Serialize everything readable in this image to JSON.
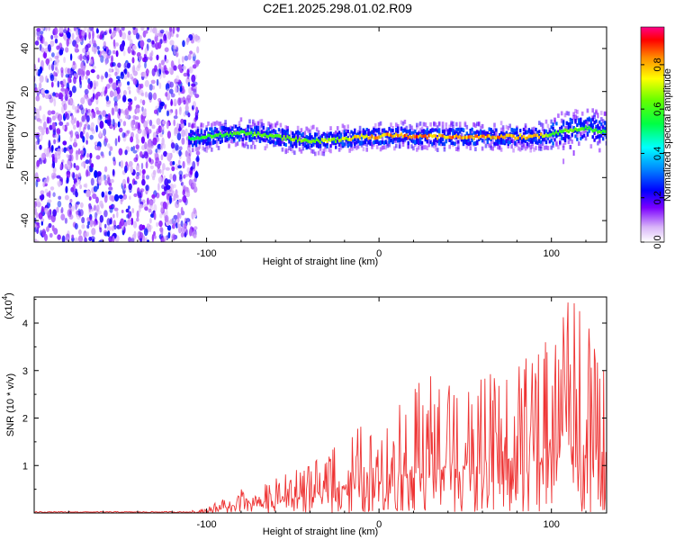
{
  "title": "C2E1.2025.298.01.02.R09",
  "chart_data": [
    {
      "type": "heatmap",
      "name": "spectrogram",
      "xlabel": "Height of straight line (km)",
      "ylabel": "Frequency (Hz)",
      "xlim": [
        -200,
        132
      ],
      "ylim": [
        -50,
        50
      ],
      "xticks": [
        -100,
        0,
        100
      ],
      "yticks": [
        -40,
        -20,
        0,
        20,
        40
      ],
      "colorbar": {
        "label": "Normalized spectral amplitude",
        "range": [
          0,
          0.97
        ],
        "ticks": [
          0.0,
          0.2,
          0.4,
          0.6,
          0.8
        ]
      },
      "ridge": {
        "description": "dominant frequency track vs height",
        "x": [
          -110,
          -100,
          -90,
          -80,
          -70,
          -60,
          -50,
          -40,
          -30,
          -20,
          -10,
          0,
          10,
          20,
          30,
          40,
          50,
          60,
          70,
          80,
          90,
          100,
          110,
          120,
          130
        ],
        "y": [
          -2,
          -1,
          0,
          1,
          0,
          -1,
          -2,
          -3,
          -3,
          -2,
          -1,
          -1,
          0,
          -1,
          -1,
          -1,
          -1,
          -1,
          -1,
          -1,
          -1,
          0,
          2,
          3,
          1
        ],
        "peak_amplitude": [
          0.35,
          0.45,
          0.5,
          0.5,
          0.55,
          0.55,
          0.6,
          0.6,
          0.65,
          0.7,
          0.8,
          0.85,
          0.9,
          0.95,
          0.92,
          0.9,
          0.88,
          0.9,
          0.9,
          0.88,
          0.92,
          0.5,
          0.55,
          0.5,
          0.45
        ]
      },
      "noise_region_x": [
        -200,
        -105
      ]
    },
    {
      "type": "line",
      "name": "snr",
      "xlabel": "Height of straight line (km)",
      "ylabel": "SNR (10 * v/v)",
      "y_scale_label": "(x10",
      "y_scale_exp": "4",
      "xlim": [
        -200,
        132
      ],
      "ylim": [
        0,
        4.55
      ],
      "xticks": [
        -100,
        0,
        100
      ],
      "yticks": [
        1,
        2,
        3,
        4
      ],
      "color": "#ee3333",
      "envelope": {
        "x": [
          -200,
          -110,
          -100,
          -90,
          -80,
          -70,
          -60,
          -50,
          -40,
          -30,
          -20,
          -10,
          0,
          10,
          20,
          30,
          40,
          50,
          60,
          70,
          80,
          90,
          100,
          110,
          120,
          132
        ],
        "y": [
          0.02,
          0.04,
          0.1,
          0.3,
          0.5,
          0.55,
          0.7,
          0.85,
          1.0,
          1.2,
          1.5,
          1.8,
          2.0,
          2.2,
          2.6,
          2.8,
          2.7,
          2.6,
          2.7,
          2.9,
          3.0,
          3.2,
          3.6,
          4.5,
          4.0,
          3.3
        ]
      }
    }
  ]
}
